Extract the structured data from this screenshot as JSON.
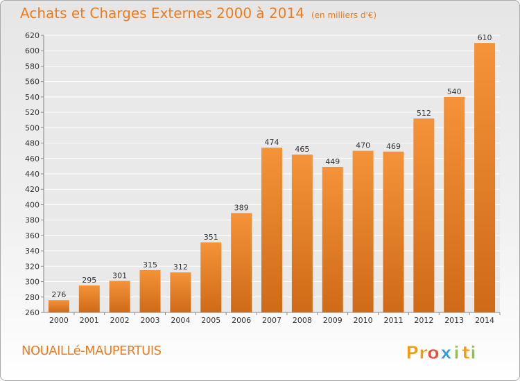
{
  "title": "Achats et Charges Externes 2000 à 2014",
  "unit": "(en milliers d'€)",
  "commune": "NOUAILLé-MAUPERTUIS",
  "logo": {
    "letters": [
      "P",
      "r",
      "o",
      "x",
      "i",
      "t",
      "i"
    ],
    "colors": [
      "#f39c12",
      "#f39c12",
      "#e84c3d",
      "#3498db",
      "#8bc34a",
      "#f39c12",
      "#8bc34a"
    ]
  },
  "colors": {
    "bar": "#f4933a",
    "bar_dark": "#cf6a17",
    "accent": "#f07b1f",
    "grid": "#ffffff"
  },
  "chart_data": {
    "type": "bar",
    "categories": [
      "2000",
      "2001",
      "2002",
      "2003",
      "2004",
      "2005",
      "2006",
      "2007",
      "2008",
      "2009",
      "2010",
      "2011",
      "2012",
      "2013",
      "2014"
    ],
    "values": [
      276,
      295,
      301,
      315,
      312,
      351,
      389,
      474,
      465,
      449,
      470,
      469,
      512,
      540,
      610
    ],
    "ylim": [
      260,
      620
    ],
    "yticks": [
      260,
      280,
      300,
      320,
      340,
      360,
      380,
      400,
      420,
      440,
      460,
      480,
      500,
      520,
      540,
      560,
      580,
      600,
      620
    ],
    "grid": true,
    "data_labels": true
  }
}
